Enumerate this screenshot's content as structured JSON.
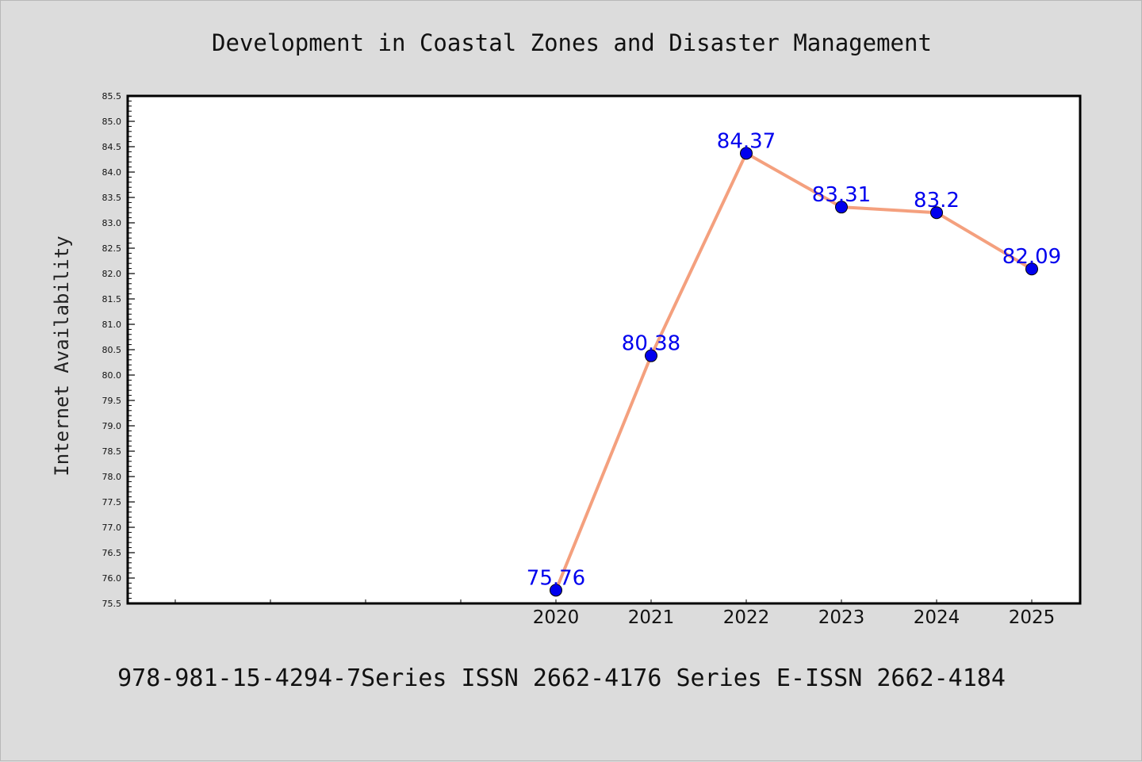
{
  "colors": {
    "background": "#dcdcdc",
    "plot_background": "#ffffff",
    "line": "#f4a07e",
    "marker": "#0000ee",
    "data_label": "#0000ee"
  },
  "footer": "978-981-15-4294-7Series ISSN 2662-4176 Series E-ISSN 2662-4184",
  "chart_data": {
    "type": "line",
    "title": "Development in Coastal Zones and Disaster Management",
    "xlabel": "",
    "ylabel": "Internet Availability",
    "categories": [
      "2020",
      "2021",
      "2022",
      "2023",
      "2024",
      "2025"
    ],
    "series": [
      {
        "values": [
          75.76,
          80.38,
          84.37,
          83.31,
          83.2,
          82.09
        ],
        "labels": [
          "75.76",
          "80.38",
          "84.37",
          "83.31",
          "83.2",
          "82.09"
        ]
      }
    ],
    "ylim": [
      75.5,
      85.5
    ],
    "ytick_step": 0.5,
    "ytick_labels": [
      "75.5",
      "76.0",
      "76.5",
      "77.0",
      "77.5",
      "78.0",
      "78.5",
      "79.0",
      "79.5",
      "80.0",
      "80.5",
      "81.0",
      "81.5",
      "82.0",
      "82.5",
      "83.0",
      "83.5",
      "84.0",
      "84.5",
      "85.0",
      "85.5"
    ],
    "x_slots": 10,
    "x_first_label_slot": 4,
    "grid": false,
    "legend": "none"
  }
}
